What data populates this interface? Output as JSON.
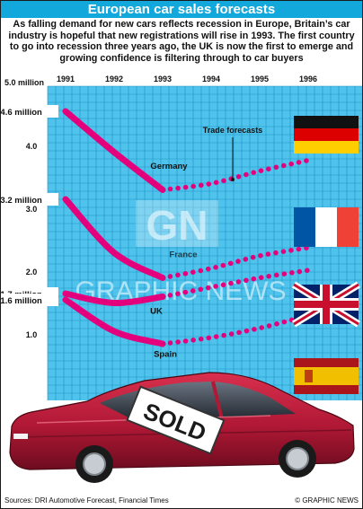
{
  "title": "European car sales forecasts",
  "intro": "As falling demand for new cars reflects recession in Europe, Britain’s car industry is hopeful that new registrations will rise in 1993. The first country to go into recession three years ago, the UK is now the first to emerge and growing confidence is filtering through to car buyers",
  "source": "Sources: DRI Automotive Forecast, Financial Times",
  "credit": "© GRAPHIC NEWS",
  "watermark": {
    "logo": "GN",
    "text": "GRAPHIC NEWS"
  },
  "car_badge": "SOLD",
  "colors": {
    "title_bar": "#13a8dc",
    "plot_bg": "#4fc3ec",
    "grid": "#1e93c6",
    "series_line": "#e4007c",
    "car_body": "#b01835"
  },
  "chart_data": {
    "type": "line",
    "x": [
      1991,
      1992,
      1993,
      1994,
      1995,
      1996
    ],
    "xlim": [
      1991,
      1996
    ],
    "ylim": [
      0,
      5.0
    ],
    "y_tick_labels": [
      "5.0 million",
      "4.0",
      "3.0",
      "2.0",
      "1.0"
    ],
    "y_tick_values": [
      5.0,
      4.0,
      3.0,
      2.0,
      1.0
    ],
    "grid": true,
    "series": [
      {
        "name": "Germany",
        "flag": "germany-flag",
        "start_label": "4.6 million",
        "values": [
          4.6,
          3.95,
          3.35,
          3.45,
          3.65,
          3.82
        ]
      },
      {
        "name": "France",
        "flag": "france-flag",
        "start_label": "3.2 million",
        "values": [
          3.2,
          2.35,
          1.95,
          2.1,
          2.3,
          2.43
        ]
      },
      {
        "name": "UK",
        "flag": "uk-flag",
        "start_label": "1.7 million",
        "values": [
          1.7,
          1.55,
          1.65,
          1.8,
          1.95,
          2.07
        ]
      },
      {
        "name": "Spain",
        "flag": "spain-flag",
        "start_label": "1.6 million",
        "values": [
          1.6,
          1.1,
          0.9,
          1.0,
          1.15,
          1.35
        ]
      }
    ],
    "forecast_from": 1993,
    "annotations": [
      {
        "text": "Trade forecasts"
      }
    ]
  }
}
